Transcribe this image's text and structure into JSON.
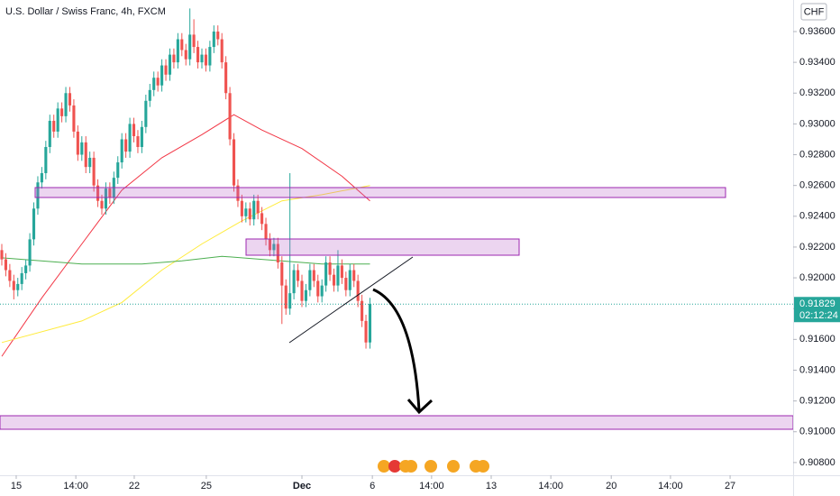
{
  "chart_data": {
    "type": "candlestick",
    "title": "U.S. Dollar / Swiss Franc, 4h, FXCM",
    "currency": "CHF",
    "up_color": "#26a69a",
    "down_color": "#ef5350",
    "xlim": [
      -0.45,
      197.75
    ],
    "ylim": [
      0.90729,
      0.93805
    ],
    "grid": false,
    "yticks": [
      {
        "value": 0.936,
        "label": "0.93600"
      },
      {
        "value": 0.934,
        "label": "0.93400"
      },
      {
        "value": 0.932,
        "label": "0.93200"
      },
      {
        "value": 0.93,
        "label": "0.93000"
      },
      {
        "value": 0.928,
        "label": "0.92800"
      },
      {
        "value": 0.926,
        "label": "0.92600"
      },
      {
        "value": 0.924,
        "label": "0.92400"
      },
      {
        "value": 0.922,
        "label": "0.92200"
      },
      {
        "value": 0.92,
        "label": "0.92000"
      },
      {
        "value": 0.918,
        "label": "0.91800"
      },
      {
        "value": 0.916,
        "label": "0.91600"
      },
      {
        "value": 0.914,
        "label": "0.91400"
      },
      {
        "value": 0.912,
        "label": "0.91200"
      },
      {
        "value": 0.91,
        "label": "0.91000"
      },
      {
        "value": 0.908,
        "label": "0.90800"
      }
    ],
    "xticks": [
      {
        "value": 3.6,
        "label": "15"
      },
      {
        "value": 18.5,
        "label": "14:00"
      },
      {
        "value": 33.1,
        "label": "22"
      },
      {
        "value": 51.1,
        "label": "25"
      },
      {
        "value": 75,
        "label": "Dec"
      },
      {
        "value": 92.6,
        "label": "6"
      },
      {
        "value": 107.4,
        "label": "14:00"
      },
      {
        "value": 122.3,
        "label": "13"
      },
      {
        "value": 137.2,
        "label": "14:00"
      },
      {
        "value": 152.3,
        "label": "20"
      },
      {
        "value": 167.1,
        "label": "14:00"
      },
      {
        "value": 182,
        "label": "27"
      }
    ],
    "last_price": {
      "value": 0.91829,
      "label": "0.91829"
    },
    "countdown": "02:12:24",
    "candles": [
      [
        0.9218,
        0.9222,
        0.9208,
        0.9212
      ],
      [
        0.9212,
        0.9216,
        0.9201,
        0.9205
      ],
      [
        0.9205,
        0.9209,
        0.9194,
        0.9198
      ],
      [
        0.9198,
        0.9202,
        0.9186,
        0.9192
      ],
      [
        0.9192,
        0.92,
        0.9188,
        0.9196
      ],
      [
        0.9196,
        0.9207,
        0.9192,
        0.9203
      ],
      [
        0.9203,
        0.9212,
        0.9199,
        0.9208
      ],
      [
        0.9208,
        0.9229,
        0.9204,
        0.9225
      ],
      [
        0.9225,
        0.9249,
        0.9221,
        0.9245
      ],
      [
        0.9245,
        0.9266,
        0.9241,
        0.9262
      ],
      [
        0.9262,
        0.9272,
        0.9258,
        0.9268
      ],
      [
        0.9268,
        0.9289,
        0.9264,
        0.9285
      ],
      [
        0.9285,
        0.9306,
        0.9281,
        0.9302
      ],
      [
        0.9302,
        0.9306,
        0.9291,
        0.9295
      ],
      [
        0.9295,
        0.9314,
        0.9291,
        0.931
      ],
      [
        0.931,
        0.9314,
        0.9301,
        0.9305
      ],
      [
        0.9305,
        0.9324,
        0.9301,
        0.932
      ],
      [
        0.932,
        0.9324,
        0.9308,
        0.9312
      ],
      [
        0.9312,
        0.9316,
        0.9291,
        0.9295
      ],
      [
        0.9295,
        0.9299,
        0.9276,
        0.928
      ],
      [
        0.928,
        0.9292,
        0.9276,
        0.9288
      ],
      [
        0.9288,
        0.9292,
        0.9268,
        0.9272
      ],
      [
        0.9272,
        0.9282,
        0.9268,
        0.9278
      ],
      [
        0.9278,
        0.9282,
        0.9256,
        0.926
      ],
      [
        0.926,
        0.9264,
        0.9246,
        0.925
      ],
      [
        0.925,
        0.9254,
        0.9241,
        0.9245
      ],
      [
        0.9245,
        0.9262,
        0.9241,
        0.9258
      ],
      [
        0.9258,
        0.9262,
        0.9248,
        0.9252
      ],
      [
        0.9252,
        0.9269,
        0.9248,
        0.9265
      ],
      [
        0.9265,
        0.9279,
        0.9261,
        0.9275
      ],
      [
        0.9275,
        0.9294,
        0.9271,
        0.929
      ],
      [
        0.929,
        0.9294,
        0.9278,
        0.9282
      ],
      [
        0.9282,
        0.9304,
        0.9278,
        0.93
      ],
      [
        0.93,
        0.9304,
        0.9288,
        0.9292
      ],
      [
        0.9292,
        0.9296,
        0.9281,
        0.9285
      ],
      [
        0.9285,
        0.9302,
        0.9281,
        0.9298
      ],
      [
        0.9298,
        0.9319,
        0.9294,
        0.9315
      ],
      [
        0.9315,
        0.9326,
        0.9311,
        0.9322
      ],
      [
        0.9322,
        0.9334,
        0.9318,
        0.933
      ],
      [
        0.933,
        0.9334,
        0.9321,
        0.9325
      ],
      [
        0.9325,
        0.9342,
        0.9321,
        0.9338
      ],
      [
        0.9338,
        0.9342,
        0.9328,
        0.9332
      ],
      [
        0.9332,
        0.9349,
        0.9328,
        0.9345
      ],
      [
        0.9345,
        0.9349,
        0.9336,
        0.934
      ],
      [
        0.934,
        0.9359,
        0.9336,
        0.9355
      ],
      [
        0.9355,
        0.9359,
        0.9344,
        0.9348
      ],
      [
        0.9348,
        0.9352,
        0.9338,
        0.9342
      ],
      [
        0.9342,
        0.9375,
        0.9338,
        0.9358
      ],
      [
        0.9358,
        0.9368,
        0.9346,
        0.935
      ],
      [
        0.935,
        0.9354,
        0.9336,
        0.934
      ],
      [
        0.934,
        0.9349,
        0.9336,
        0.9345
      ],
      [
        0.9345,
        0.9349,
        0.9334,
        0.9338
      ],
      [
        0.9338,
        0.9354,
        0.9334,
        0.935
      ],
      [
        0.935,
        0.9364,
        0.9346,
        0.936
      ],
      [
        0.936,
        0.9364,
        0.9351,
        0.9355
      ],
      [
        0.9355,
        0.9359,
        0.9336,
        0.934
      ],
      [
        0.934,
        0.9344,
        0.9316,
        0.932
      ],
      [
        0.932,
        0.9324,
        0.9286,
        0.929
      ],
      [
        0.929,
        0.9294,
        0.9256,
        0.926
      ],
      [
        0.926,
        0.9264,
        0.9246,
        0.925
      ],
      [
        0.925,
        0.9254,
        0.9236,
        0.924
      ],
      [
        0.924,
        0.9249,
        0.9236,
        0.9245
      ],
      [
        0.9245,
        0.9249,
        0.9234,
        0.9238
      ],
      [
        0.9238,
        0.9254,
        0.9234,
        0.925
      ],
      [
        0.925,
        0.9254,
        0.9238,
        0.9242
      ],
      [
        0.9242,
        0.9246,
        0.9231,
        0.9235
      ],
      [
        0.9235,
        0.9239,
        0.9221,
        0.9225
      ],
      [
        0.9225,
        0.9229,
        0.9214,
        0.9218
      ],
      [
        0.9218,
        0.9226,
        0.9214,
        0.9222
      ],
      [
        0.9222,
        0.9226,
        0.9206,
        0.921
      ],
      [
        0.921,
        0.9214,
        0.917,
        0.9195
      ],
      [
        0.9195,
        0.9199,
        0.9176,
        0.918
      ],
      [
        0.918,
        0.9268,
        0.9176,
        0.919
      ],
      [
        0.919,
        0.9209,
        0.9186,
        0.9205
      ],
      [
        0.9205,
        0.9209,
        0.9194,
        0.9198
      ],
      [
        0.9198,
        0.9202,
        0.9181,
        0.9185
      ],
      [
        0.9185,
        0.9196,
        0.9181,
        0.9192
      ],
      [
        0.9192,
        0.9209,
        0.9188,
        0.9205
      ],
      [
        0.9205,
        0.9209,
        0.9194,
        0.9198
      ],
      [
        0.9198,
        0.9202,
        0.9184,
        0.9188
      ],
      [
        0.9188,
        0.9199,
        0.9184,
        0.9195
      ],
      [
        0.9195,
        0.9214,
        0.9191,
        0.921
      ],
      [
        0.921,
        0.9214,
        0.9198,
        0.9202
      ],
      [
        0.9202,
        0.9206,
        0.9191,
        0.9195
      ],
      [
        0.9195,
        0.9218,
        0.9191,
        0.9208
      ],
      [
        0.9208,
        0.9212,
        0.9196,
        0.92
      ],
      [
        0.92,
        0.9204,
        0.9188,
        0.9192
      ],
      [
        0.9192,
        0.9209,
        0.9188,
        0.9205
      ],
      [
        0.9205,
        0.9209,
        0.9194,
        0.9198
      ],
      [
        0.9198,
        0.9202,
        0.9181,
        0.9185
      ],
      [
        0.9185,
        0.9189,
        0.9168,
        0.9172
      ],
      [
        0.9172,
        0.9176,
        0.9154,
        0.9158
      ],
      [
        0.9158,
        0.9187,
        0.9154,
        0.9183
      ]
    ],
    "series": [
      {
        "color": "#f23645",
        "x": [
          0,
          10,
          20,
          30,
          40,
          50,
          58,
          65,
          75,
          85,
          92
        ],
        "values": [
          0.9149,
          0.9187,
          0.9222,
          0.9257,
          0.9278,
          0.9293,
          0.9306,
          0.9296,
          0.9284,
          0.9266,
          0.925
        ]
      },
      {
        "color": "#ffeb3b",
        "x": [
          0,
          20,
          30,
          40,
          50,
          60,
          70,
          80,
          92
        ],
        "values": [
          0.9158,
          0.9172,
          0.9184,
          0.9205,
          0.9222,
          0.9237,
          0.925,
          0.9254,
          0.926
        ]
      },
      {
        "color": "#4caf50",
        "x": [
          0,
          20,
          35,
          45,
          55,
          65,
          80,
          92
        ],
        "values": [
          0.9213,
          0.9209,
          0.9209,
          0.9211,
          0.9214,
          0.9212,
          0.9209,
          0.9209
        ]
      }
    ]
  }
}
